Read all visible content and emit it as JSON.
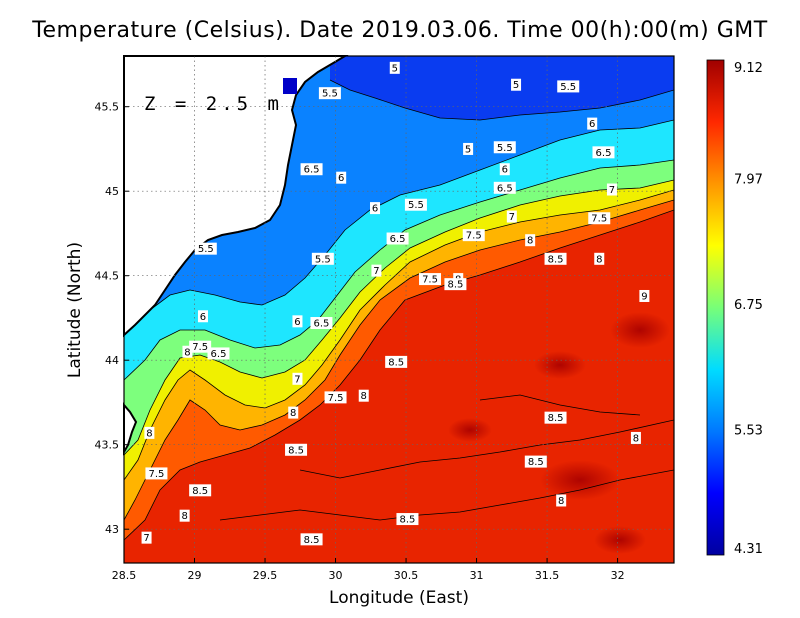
{
  "title": "Temperature (Celsius). Date 2019.03.06. Time 00(h):00(m)  GMT",
  "depth_label": "Z = 2.5 m",
  "xlabel": "Longitude (East)",
  "ylabel": "Latitude (North)",
  "chart_data": {
    "type": "heatmap",
    "xlim": [
      28.5,
      32.4
    ],
    "ylim": [
      42.8,
      45.8
    ],
    "x_ticks": [
      "28.5",
      "29",
      "29.5",
      "30",
      "30.5",
      "31",
      "31.5",
      "32"
    ],
    "x_tick_values": [
      28.5,
      29,
      29.5,
      30,
      30.5,
      31,
      31.5,
      32
    ],
    "y_ticks": [
      "43",
      "43.5",
      "44",
      "44.5",
      "45",
      "45.5"
    ],
    "y_tick_values": [
      43,
      43.5,
      44,
      44.5,
      45,
      45.5
    ],
    "grid": true,
    "colorbar": {
      "min": 4.31,
      "max": 9.12,
      "tick_labels": [
        "9.12",
        "7.97",
        "6.75",
        "5.53",
        "4.31"
      ],
      "tick_values": [
        9.12,
        7.97,
        6.75,
        5.53,
        4.31
      ],
      "colors": [
        "#0000a0",
        "#0000ff",
        "#0078ff",
        "#00dcff",
        "#78ff78",
        "#ffff00",
        "#ff9600",
        "#ff2800",
        "#a00000"
      ]
    },
    "contour_labels": [
      {
        "text": "5",
        "lon": 30.42,
        "lat": 45.73
      },
      {
        "text": "5",
        "lon": 31.28,
        "lat": 45.63
      },
      {
        "text": "5.5",
        "lon": 31.65,
        "lat": 45.62
      },
      {
        "text": "5.5",
        "lon": 29.96,
        "lat": 45.58
      },
      {
        "text": "6",
        "lon": 31.82,
        "lat": 45.4
      },
      {
        "text": "5.5",
        "lon": 31.2,
        "lat": 45.26
      },
      {
        "text": "5",
        "lon": 30.94,
        "lat": 45.25
      },
      {
        "text": "6.5",
        "lon": 31.9,
        "lat": 45.23
      },
      {
        "text": "6.5",
        "lon": 29.83,
        "lat": 45.13
      },
      {
        "text": "6",
        "lon": 30.04,
        "lat": 45.08
      },
      {
        "text": "6",
        "lon": 31.2,
        "lat": 45.13
      },
      {
        "text": "6.5",
        "lon": 31.2,
        "lat": 45.02
      },
      {
        "text": "7",
        "lon": 31.96,
        "lat": 45.01
      },
      {
        "text": "5.5",
        "lon": 30.57,
        "lat": 44.92
      },
      {
        "text": "6",
        "lon": 30.28,
        "lat": 44.9
      },
      {
        "text": "7",
        "lon": 31.25,
        "lat": 44.85
      },
      {
        "text": "7.5",
        "lon": 31.87,
        "lat": 44.84
      },
      {
        "text": "6.5",
        "lon": 30.44,
        "lat": 44.72
      },
      {
        "text": "7.5",
        "lon": 30.98,
        "lat": 44.74
      },
      {
        "text": "8",
        "lon": 31.38,
        "lat": 44.71
      },
      {
        "text": "5.5",
        "lon": 29.08,
        "lat": 44.66
      },
      {
        "text": "5.5",
        "lon": 29.91,
        "lat": 44.6
      },
      {
        "text": "8.5",
        "lon": 31.56,
        "lat": 44.6
      },
      {
        "text": "8",
        "lon": 31.87,
        "lat": 44.6
      },
      {
        "text": "7",
        "lon": 30.29,
        "lat": 44.53
      },
      {
        "text": "7.5",
        "lon": 30.67,
        "lat": 44.48
      },
      {
        "text": "8",
        "lon": 30.87,
        "lat": 44.48
      },
      {
        "text": "8.5",
        "lon": 30.85,
        "lat": 44.45
      },
      {
        "text": "9",
        "lon": 32.19,
        "lat": 44.38
      },
      {
        "text": "6",
        "lon": 29.06,
        "lat": 44.26
      },
      {
        "text": "6",
        "lon": 29.73,
        "lat": 44.23
      },
      {
        "text": "6.5",
        "lon": 29.9,
        "lat": 44.22
      },
      {
        "text": "7.5",
        "lon": 29.04,
        "lat": 44.08
      },
      {
        "text": "8",
        "lon": 28.95,
        "lat": 44.05
      },
      {
        "text": "6.5",
        "lon": 29.17,
        "lat": 44.04
      },
      {
        "text": "8.5",
        "lon": 30.43,
        "lat": 43.99
      },
      {
        "text": "7",
        "lon": 29.73,
        "lat": 43.89
      },
      {
        "text": "7.5",
        "lon": 30.0,
        "lat": 43.78
      },
      {
        "text": "8",
        "lon": 30.2,
        "lat": 43.79
      },
      {
        "text": "8",
        "lon": 29.7,
        "lat": 43.69
      },
      {
        "text": "8.5",
        "lon": 31.56,
        "lat": 43.66
      },
      {
        "text": "8",
        "lon": 28.68,
        "lat": 43.57
      },
      {
        "text": "8",
        "lon": 32.13,
        "lat": 43.54
      },
      {
        "text": "8.5",
        "lon": 29.72,
        "lat": 43.47
      },
      {
        "text": "8.5",
        "lon": 31.42,
        "lat": 43.4
      },
      {
        "text": "7.5",
        "lon": 28.73,
        "lat": 43.33
      },
      {
        "text": "8.5",
        "lon": 29.04,
        "lat": 43.23
      },
      {
        "text": "8",
        "lon": 31.6,
        "lat": 43.17
      },
      {
        "text": "8",
        "lon": 28.93,
        "lat": 43.08
      },
      {
        "text": "8.5",
        "lon": 30.51,
        "lat": 43.06
      },
      {
        "text": "7",
        "lon": 28.66,
        "lat": 42.95
      },
      {
        "text": "8.5",
        "lon": 29.83,
        "lat": 42.94
      }
    ]
  }
}
